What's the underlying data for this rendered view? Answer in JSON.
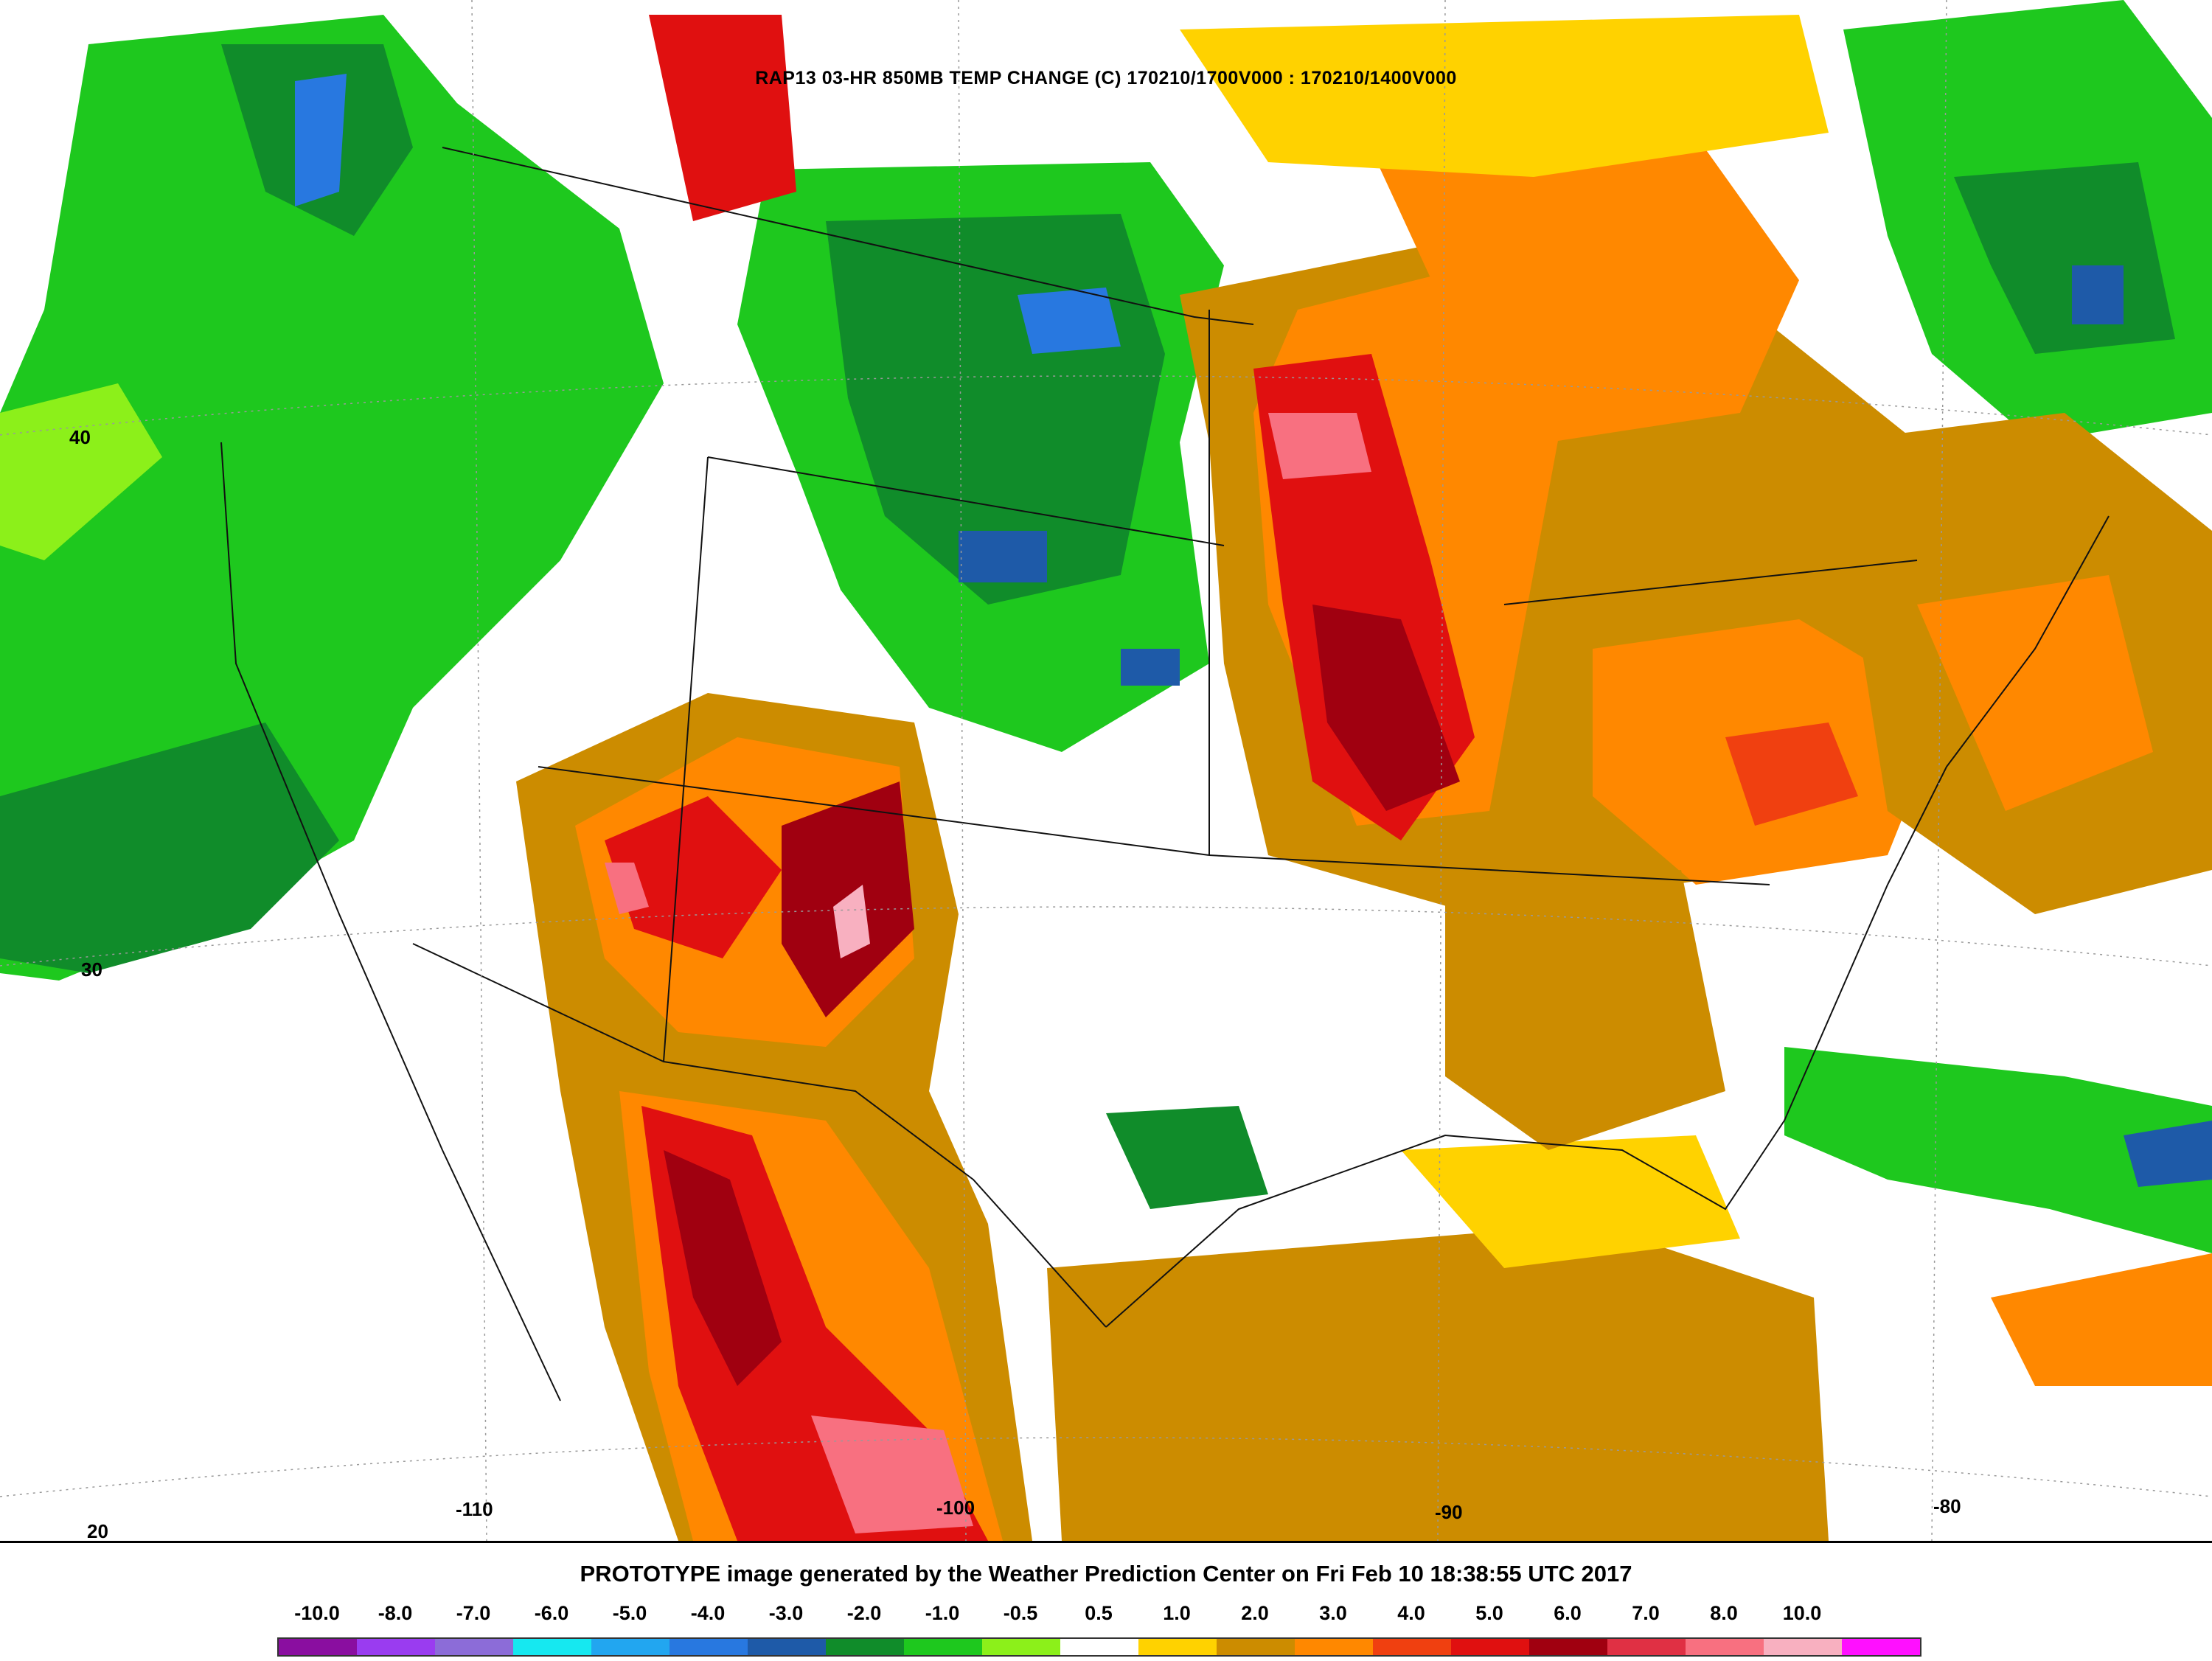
{
  "map": {
    "title": "RAP13 03-HR 850MB TEMP CHANGE (C) 170210/1700V000 : 170210/1400V000",
    "latitude_labels": [
      "40",
      "30",
      "20"
    ],
    "longitude_labels": [
      "-110",
      "-100",
      "-90",
      "-80"
    ]
  },
  "footer": {
    "generated_text": "PROTOTYPE image generated by the Weather Prediction Center on Fri Feb 10 18:38:55 UTC 2017"
  },
  "legend": {
    "labels": [
      "-10.0",
      "-8.0",
      "-7.0",
      "-6.0",
      "-5.0",
      "-4.0",
      "-3.0",
      "-2.0",
      "-1.0",
      "-0.5",
      "0.5",
      "1.0",
      "2.0",
      "3.0",
      "4.0",
      "5.0",
      "6.0",
      "7.0",
      "8.0",
      "10.0"
    ],
    "colors": [
      "#8a0ea0",
      "#9a3cf0",
      "#8c6cd8",
      "#16e8f0",
      "#22a6f0",
      "#2878e0",
      "#1e5aa8",
      "#108c2a",
      "#1ec81e",
      "#8cf01a",
      "#ffffff",
      "#ffd200",
      "#cc8c00",
      "#ff8800",
      "#f04010",
      "#e01010",
      "#a00010",
      "#e03044",
      "#f87080",
      "#f8b0c0",
      "#ff10ff"
    ]
  }
}
